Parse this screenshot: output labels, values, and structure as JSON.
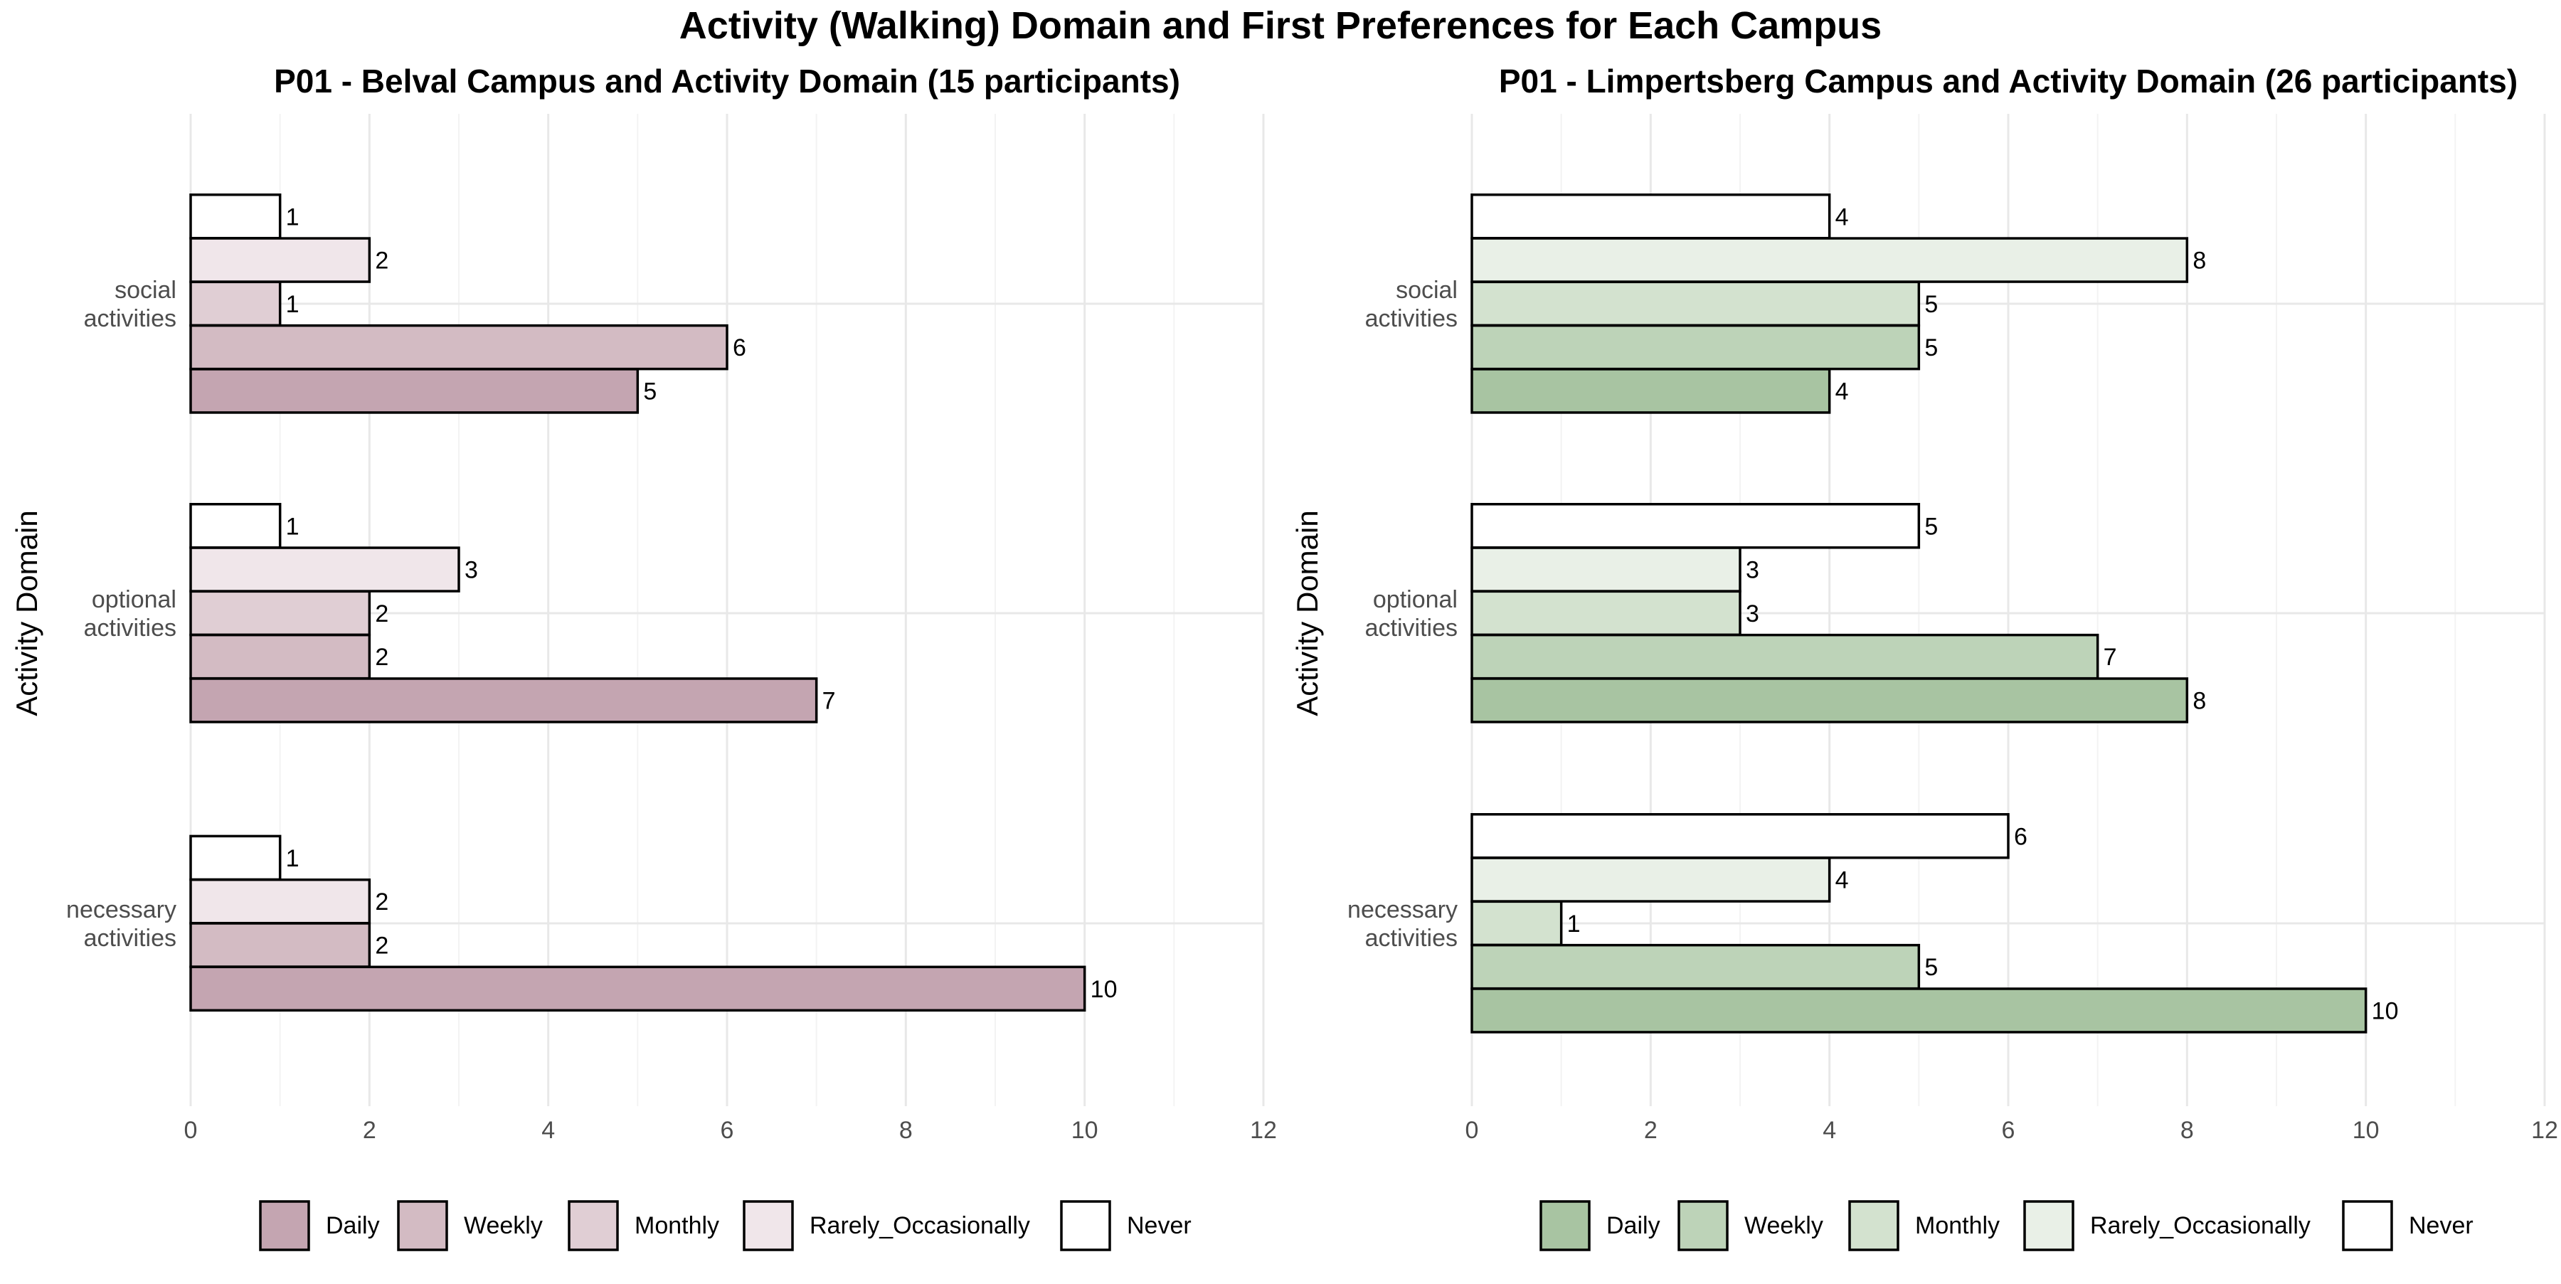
{
  "title": "Activity (Walking) Domain and First Preferences for Each Campus",
  "chart_data": [
    {
      "type": "bar",
      "orientation": "horizontal",
      "title": "P01 - Belval Campus and Activity Domain (15 participants)",
      "xlabel": "",
      "ylabel": "Activity Domain",
      "xlim": [
        0,
        12
      ],
      "x_ticks": [
        0,
        2,
        4,
        6,
        8,
        10,
        12
      ],
      "grid": true,
      "legend_position": "bottom",
      "categories": [
        "social activities",
        "optional activities",
        "necessary activities"
      ],
      "category_lines": [
        [
          "social",
          "activities"
        ],
        [
          "optional",
          "activities"
        ],
        [
          "necessary",
          "activities"
        ]
      ],
      "legend_order": [
        "Daily",
        "Weekly",
        "Monthly",
        "Rarely_Occasionally",
        "Never"
      ],
      "colors": {
        "Daily": "#c4a5b1",
        "Weekly": "#d3bbc3",
        "Monthly": "#e0ced4",
        "Rarely_Occasionally": "#f0e6ea",
        "Never": "#ffffff"
      },
      "groups": [
        {
          "category": "social activities",
          "bars": [
            {
              "series": "Never",
              "value": 1
            },
            {
              "series": "Rarely_Occasionally",
              "value": 2
            },
            {
              "series": "Monthly",
              "value": 1
            },
            {
              "series": "Weekly",
              "value": 6
            },
            {
              "series": "Daily",
              "value": 5
            }
          ]
        },
        {
          "category": "optional activities",
          "bars": [
            {
              "series": "Never",
              "value": 1
            },
            {
              "series": "Rarely_Occasionally",
              "value": 3
            },
            {
              "series": "Monthly",
              "value": 2
            },
            {
              "series": "Weekly",
              "value": 2
            },
            {
              "series": "Daily",
              "value": 7
            }
          ]
        },
        {
          "category": "necessary activities",
          "bars": [
            {
              "series": "Never",
              "value": 1
            },
            {
              "series": "Rarely_Occasionally",
              "value": 2
            },
            {
              "series": "Weekly",
              "value": 2
            },
            {
              "series": "Daily",
              "value": 10
            }
          ]
        }
      ]
    },
    {
      "type": "bar",
      "orientation": "horizontal",
      "title": "P01 - Limpertsberg Campus and Activity Domain (26 participants)",
      "xlabel": "",
      "ylabel": "Activity Domain",
      "xlim": [
        0,
        12
      ],
      "x_ticks": [
        0,
        2,
        4,
        6,
        8,
        10,
        12
      ],
      "grid": true,
      "legend_position": "bottom",
      "categories": [
        "social activities",
        "optional activities",
        "necessary activities"
      ],
      "category_lines": [
        [
          "social",
          "activities"
        ],
        [
          "optional",
          "activities"
        ],
        [
          "necessary",
          "activities"
        ]
      ],
      "legend_order": [
        "Daily",
        "Weekly",
        "Monthly",
        "Rarely_Occasionally",
        "Never"
      ],
      "colors": {
        "Daily": "#a8c4a2",
        "Weekly": "#bdd3b8",
        "Monthly": "#d3e2cf",
        "Rarely_Occasionally": "#e9f0e7",
        "Never": "#ffffff"
      },
      "groups": [
        {
          "category": "social activities",
          "bars": [
            {
              "series": "Never",
              "value": 4
            },
            {
              "series": "Rarely_Occasionally",
              "value": 8
            },
            {
              "series": "Monthly",
              "value": 5
            },
            {
              "series": "Weekly",
              "value": 5
            },
            {
              "series": "Daily",
              "value": 4
            }
          ]
        },
        {
          "category": "optional activities",
          "bars": [
            {
              "series": "Never",
              "value": 5
            },
            {
              "series": "Rarely_Occasionally",
              "value": 3
            },
            {
              "series": "Monthly",
              "value": 3
            },
            {
              "series": "Weekly",
              "value": 7
            },
            {
              "series": "Daily",
              "value": 8
            }
          ]
        },
        {
          "category": "necessary activities",
          "bars": [
            {
              "series": "Never",
              "value": 6
            },
            {
              "series": "Rarely_Occasionally",
              "value": 4
            },
            {
              "series": "Monthly",
              "value": 1
            },
            {
              "series": "Weekly",
              "value": 5
            },
            {
              "series": "Daily",
              "value": 10
            }
          ]
        }
      ]
    }
  ]
}
